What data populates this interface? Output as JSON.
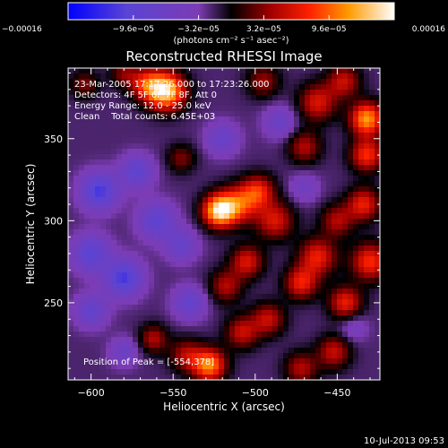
{
  "chart_data": {
    "type": "heatmap",
    "title": "Reconstructed RHESSI Image",
    "xlabel": "Heliocentric X (arcsec)",
    "ylabel": "Heliocentric Y (arcsec)",
    "xlim": [
      -614,
      -424
    ],
    "ylim": [
      203,
      393
    ],
    "x_ticks": [
      -600,
      -550,
      -500,
      -450
    ],
    "x_tick_labels": [
      "−600",
      "−550",
      "−500",
      "−450"
    ],
    "y_ticks": [
      250,
      300,
      350
    ],
    "y_tick_labels": [
      "250",
      "300",
      "350"
    ],
    "colorbar": {
      "min": -0.00016,
      "max": 0.00016,
      "ticks": [
        -0.00016,
        -9.6e-05,
        -3.2e-05,
        3.2e-05,
        9.6e-05,
        0.00016
      ],
      "tick_labels": [
        "−0.00016",
        "−9.6e−05",
        "−3.2e−05",
        "3.2e−05",
        "9.6e−05",
        "0.00016"
      ],
      "unit_label": "(photons cm⁻² s⁻¹ asec⁻²)"
    },
    "annotations": {
      "time_range": "23-Mar-2005 17:17:26.000 to 17:23:26.000",
      "detectors": "Detectors: 4F 5F 6F 7F 8F, Att 0",
      "energy_range": "Energy Range: 12.0 - 25.0 keV",
      "method_counts": "Clean    Total counts: 6.45E+03",
      "peak_position": "Position of Peak = [-554,378]"
    },
    "peak": {
      "x": -554,
      "y": 378
    },
    "sources": [
      {
        "x": -554,
        "y": 379,
        "amp": 1.0,
        "sigma": 8
      },
      {
        "x": -566,
        "y": 383,
        "amp": 0.55,
        "sigma": 7
      },
      {
        "x": -522,
        "y": 306,
        "amp": 1.0,
        "sigma": 7
      },
      {
        "x": -510,
        "y": 310,
        "amp": 0.6,
        "sigma": 8
      },
      {
        "x": -498,
        "y": 318,
        "amp": 0.55,
        "sigma": 7
      },
      {
        "x": -488,
        "y": 300,
        "amp": 0.5,
        "sigma": 8
      },
      {
        "x": -432,
        "y": 362,
        "amp": 0.85,
        "sigma": 7
      },
      {
        "x": -432,
        "y": 340,
        "amp": 0.6,
        "sigma": 7
      },
      {
        "x": -434,
        "y": 310,
        "amp": 0.55,
        "sigma": 7
      },
      {
        "x": -430,
        "y": 275,
        "amp": 0.6,
        "sigma": 8
      },
      {
        "x": -445,
        "y": 250,
        "amp": 0.55,
        "sigma": 7
      },
      {
        "x": -462,
        "y": 278,
        "amp": 0.55,
        "sigma": 8
      },
      {
        "x": -472,
        "y": 262,
        "amp": 0.55,
        "sigma": 7
      },
      {
        "x": -462,
        "y": 372,
        "amp": 0.5,
        "sigma": 8
      },
      {
        "x": -470,
        "y": 345,
        "amp": 0.4,
        "sigma": 7
      },
      {
        "x": -446,
        "y": 385,
        "amp": 0.45,
        "sigma": 7
      },
      {
        "x": -450,
        "y": 300,
        "amp": 0.4,
        "sigma": 7
      },
      {
        "x": -505,
        "y": 275,
        "amp": 0.5,
        "sigma": 7
      },
      {
        "x": -518,
        "y": 260,
        "amp": 0.4,
        "sigma": 7
      },
      {
        "x": -528,
        "y": 212,
        "amp": 0.8,
        "sigma": 7
      },
      {
        "x": -542,
        "y": 218,
        "amp": 0.4,
        "sigma": 7
      },
      {
        "x": -508,
        "y": 232,
        "amp": 0.45,
        "sigma": 7
      },
      {
        "x": -492,
        "y": 240,
        "amp": 0.45,
        "sigma": 7
      },
      {
        "x": -452,
        "y": 220,
        "amp": 0.45,
        "sigma": 7
      },
      {
        "x": -472,
        "y": 210,
        "amp": 0.4,
        "sigma": 7
      },
      {
        "x": -562,
        "y": 228,
        "amp": 0.4,
        "sigma": 6
      },
      {
        "x": -604,
        "y": 383,
        "amp": 0.3,
        "sigma": 6
      },
      {
        "x": -580,
        "y": 390,
        "amp": 0.3,
        "sigma": 6
      },
      {
        "x": -545,
        "y": 338,
        "amp": 0.3,
        "sigma": 6
      },
      {
        "x": -495,
        "y": 385,
        "amp": 0.35,
        "sigma": 7
      },
      {
        "x": -595,
        "y": 318,
        "amp": -0.6,
        "sigma": 8
      },
      {
        "x": -580,
        "y": 265,
        "amp": -0.6,
        "sigma": 8
      },
      {
        "x": -600,
        "y": 280,
        "amp": -0.5,
        "sigma": 8
      },
      {
        "x": -560,
        "y": 300,
        "amp": -0.45,
        "sigma": 8
      },
      {
        "x": -572,
        "y": 330,
        "amp": -0.45,
        "sigma": 7
      },
      {
        "x": -540,
        "y": 250,
        "amp": -0.4,
        "sigma": 7
      },
      {
        "x": -600,
        "y": 245,
        "amp": -0.4,
        "sigma": 7
      },
      {
        "x": -545,
        "y": 285,
        "amp": -0.35,
        "sigma": 7
      },
      {
        "x": -520,
        "y": 350,
        "amp": -0.35,
        "sigma": 7
      },
      {
        "x": -485,
        "y": 360,
        "amp": -0.3,
        "sigma": 7
      },
      {
        "x": -580,
        "y": 220,
        "amp": -0.3,
        "sigma": 6
      },
      {
        "x": -470,
        "y": 320,
        "amp": -0.25,
        "sigma": 6
      },
      {
        "x": -440,
        "y": 235,
        "amp": -0.2,
        "sigma": 6
      }
    ]
  },
  "footer": {
    "timestamp": "10-Jul-2013 09:53"
  },
  "colors": {
    "background": "#000000",
    "frame": "#ffffff",
    "text": "#ffffff"
  }
}
